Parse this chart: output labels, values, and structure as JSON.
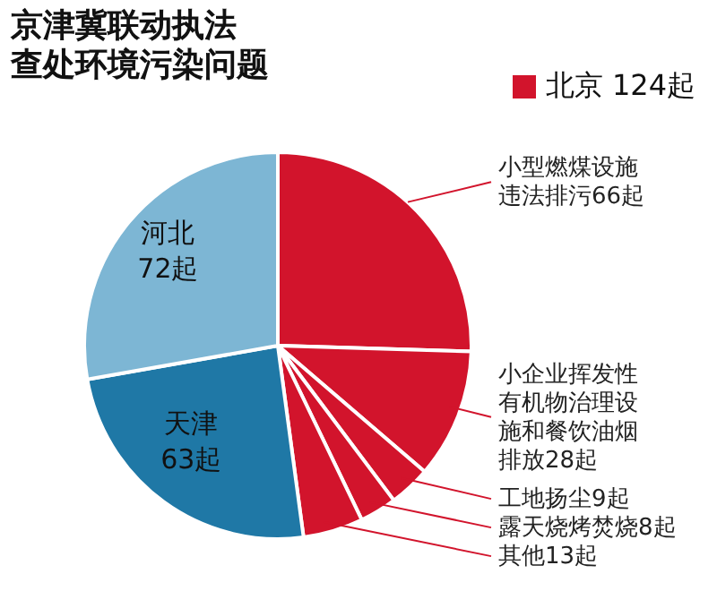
{
  "chart_data": {
    "type": "pie",
    "title": "京津冀联动执法",
    "subtitle": "查处环境污染问题",
    "categories": [
      "小型燃煤设施违法排污",
      "小企业挥发性有机物治理设施和餐饮油烟排放",
      "工地扬尘",
      "露天烧烤焚烧",
      "其他",
      "天津",
      "河北"
    ],
    "values": [
      66,
      28,
      9,
      8,
      13,
      63,
      72
    ],
    "value_labels": [
      "66起",
      "28起",
      "9起",
      "8起",
      "13起",
      "63起",
      "72起"
    ],
    "colors": [
      "#d2142c",
      "#d2142c",
      "#d2142c",
      "#d2142c",
      "#d2142c",
      "#1f78a6",
      "#7db6d4"
    ],
    "annotations": [
      "北京 124起"
    ]
  }
}
